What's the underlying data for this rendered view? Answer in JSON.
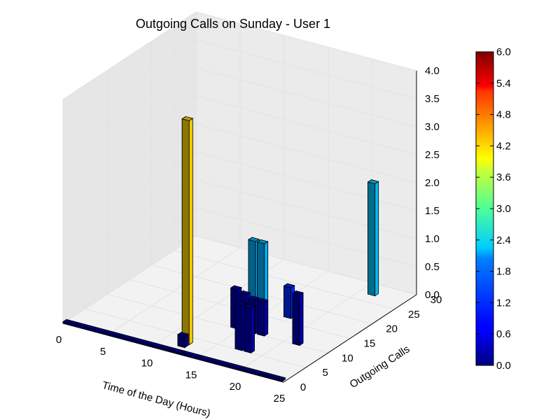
{
  "chart_data": {
    "type": "bar3d",
    "title": "Outgoing Calls on Sunday - User 1",
    "xlabel": "Time of the Day (Hours)",
    "ylabel": "Outgoing Calls",
    "xlim": [
      0,
      25
    ],
    "ylim": [
      0,
      30
    ],
    "zlim": [
      0,
      4.0
    ],
    "x_ticks": [
      "0",
      "5",
      "10",
      "15",
      "20",
      "25"
    ],
    "y_ticks": [
      "0",
      "5",
      "10",
      "15",
      "20",
      "25",
      "30"
    ],
    "z_ticks": [
      "0.0",
      "0.5",
      "1.0",
      "1.5",
      "2.0",
      "2.5",
      "3.0",
      "3.5",
      "4.0"
    ],
    "colorbar": {
      "min": 0.0,
      "max": 6.0,
      "ticks": [
        "0.0",
        "0.6",
        "1.2",
        "1.8",
        "2.4",
        "3.0",
        "3.6",
        "4.2",
        "4.8",
        "5.4",
        "6.0"
      ],
      "colormap": "jet"
    },
    "base_row": {
      "y": 0,
      "x_start": 0,
      "x_end": 24,
      "height": 0.03
    },
    "bars": [
      {
        "x": 12,
        "y": 2,
        "dz": 0.2,
        "color_value": 0.1
      },
      {
        "x": 12,
        "y": 3,
        "dz": 4.0,
        "color_value": 4.0
      },
      {
        "x": 14,
        "y": 10,
        "dz": 0.7,
        "color_value": 0.3
      },
      {
        "x": 15,
        "y": 10,
        "dz": 0.65,
        "color_value": 0.3
      },
      {
        "x": 16,
        "y": 10,
        "dz": 0.6,
        "color_value": 0.3
      },
      {
        "x": 17,
        "y": 10,
        "dz": 0.6,
        "color_value": 0.3
      },
      {
        "x": 15,
        "y": 12,
        "dz": 1.5,
        "color_value": 1.8
      },
      {
        "x": 16,
        "y": 12,
        "dz": 1.5,
        "color_value": 1.8
      },
      {
        "x": 17,
        "y": 16,
        "dz": 0.55,
        "color_value": 1.0
      },
      {
        "x": 17,
        "y": 5,
        "dz": 0.8,
        "color_value": 0.3
      },
      {
        "x": 18,
        "y": 5,
        "dz": 0.8,
        "color_value": 0.3
      },
      {
        "x": 20,
        "y": 12,
        "dz": 0.6,
        "color_value": 0.3
      },
      {
        "x": 21,
        "y": 10,
        "dz": 0.9,
        "color_value": 0.3
      },
      {
        "x": 21,
        "y": 27,
        "dz": 2.0,
        "color_value": 1.9
      }
    ]
  }
}
